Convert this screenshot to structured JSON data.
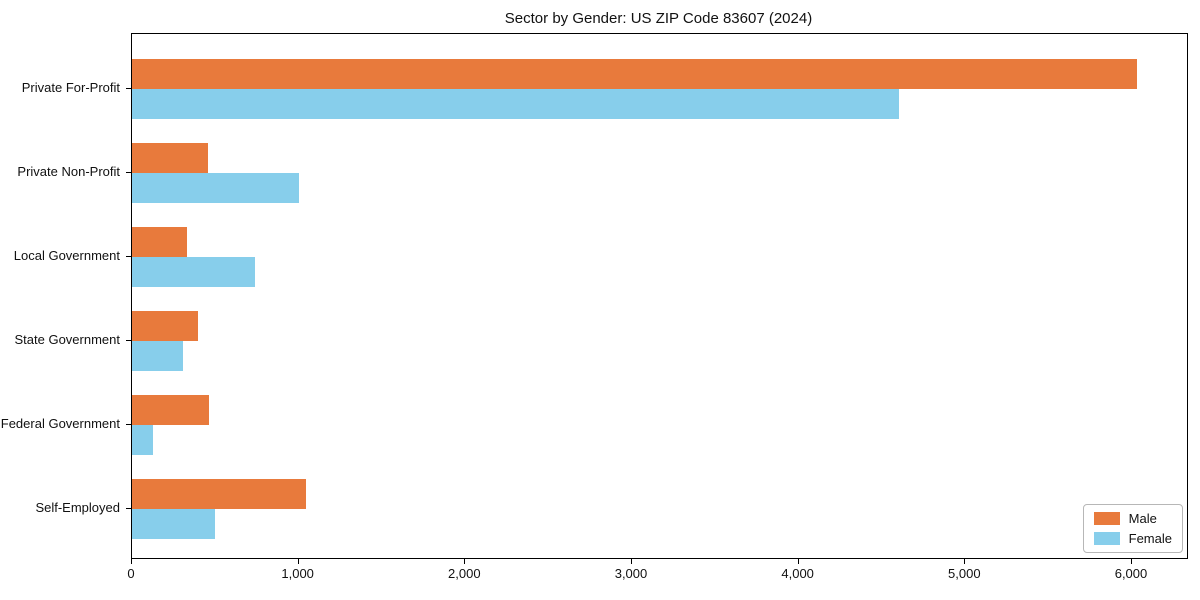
{
  "chart_data": {
    "type": "bar",
    "orientation": "horizontal",
    "title": "Sector by Gender: US ZIP Code 83607 (2024)",
    "categories": [
      "Private For-Profit",
      "Private Non-Profit",
      "Local Government",
      "State Government",
      "Federal Government",
      "Self-Employed"
    ],
    "series": [
      {
        "name": "Male",
        "color": "#E87A3C",
        "values": [
          6030,
          455,
          330,
          395,
          460,
          1045
        ]
      },
      {
        "name": "Female",
        "color": "#87CEEB",
        "values": [
          4600,
          1000,
          740,
          305,
          125,
          500
        ]
      }
    ],
    "xlabel": "",
    "ylabel": "",
    "xlim": [
      0,
      6330
    ],
    "x_ticks": [
      0,
      1000,
      2000,
      3000,
      4000,
      5000,
      6000
    ],
    "x_tick_labels": [
      "0",
      "1,000",
      "2,000",
      "3,000",
      "4,000",
      "5,000",
      "6,000"
    ],
    "grid": false,
    "legend_position": "lower right"
  }
}
